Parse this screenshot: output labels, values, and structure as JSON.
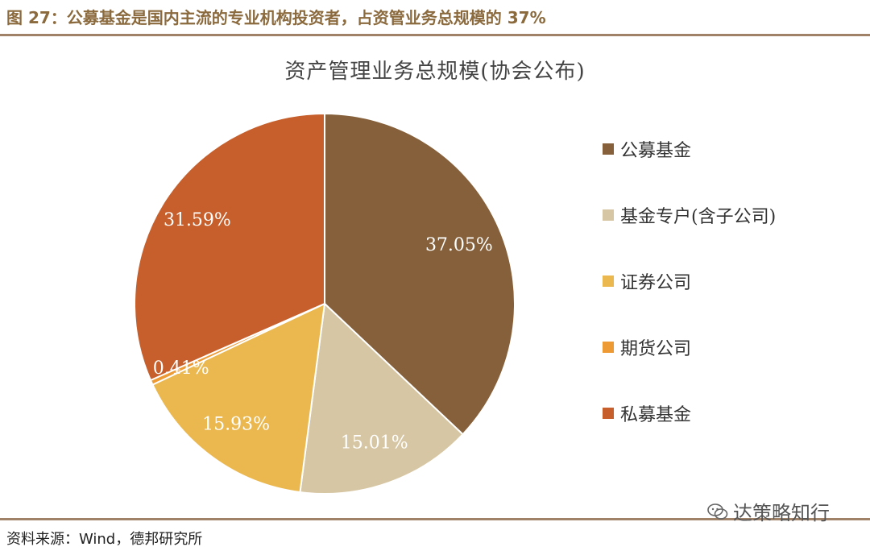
{
  "figure": {
    "title": "图 27：公募基金是国内主流的专业机构投资者，占资管业务总规模的 37%",
    "source": "资料来源：Wind，德邦研究所",
    "watermark": "达策略知行"
  },
  "chart_data": {
    "type": "pie",
    "title": "资产管理业务总规模(协会公布)",
    "legend_position": "right",
    "slices": [
      {
        "name": "公募基金",
        "value": 37.05,
        "label": "37.05%",
        "color": "#85603A"
      },
      {
        "name": "基金专户(含子公司)",
        "value": 15.01,
        "label": "15.01%",
        "color": "#D6C6A3"
      },
      {
        "name": "证券公司",
        "value": 15.93,
        "label": "15.93%",
        "color": "#EBB84F"
      },
      {
        "name": "期货公司",
        "value": 0.41,
        "label": "0.41%",
        "color": "#EE9A34"
      },
      {
        "name": "私募基金",
        "value": 31.59,
        "label": "31.59%",
        "color": "#C65F2B"
      }
    ]
  }
}
